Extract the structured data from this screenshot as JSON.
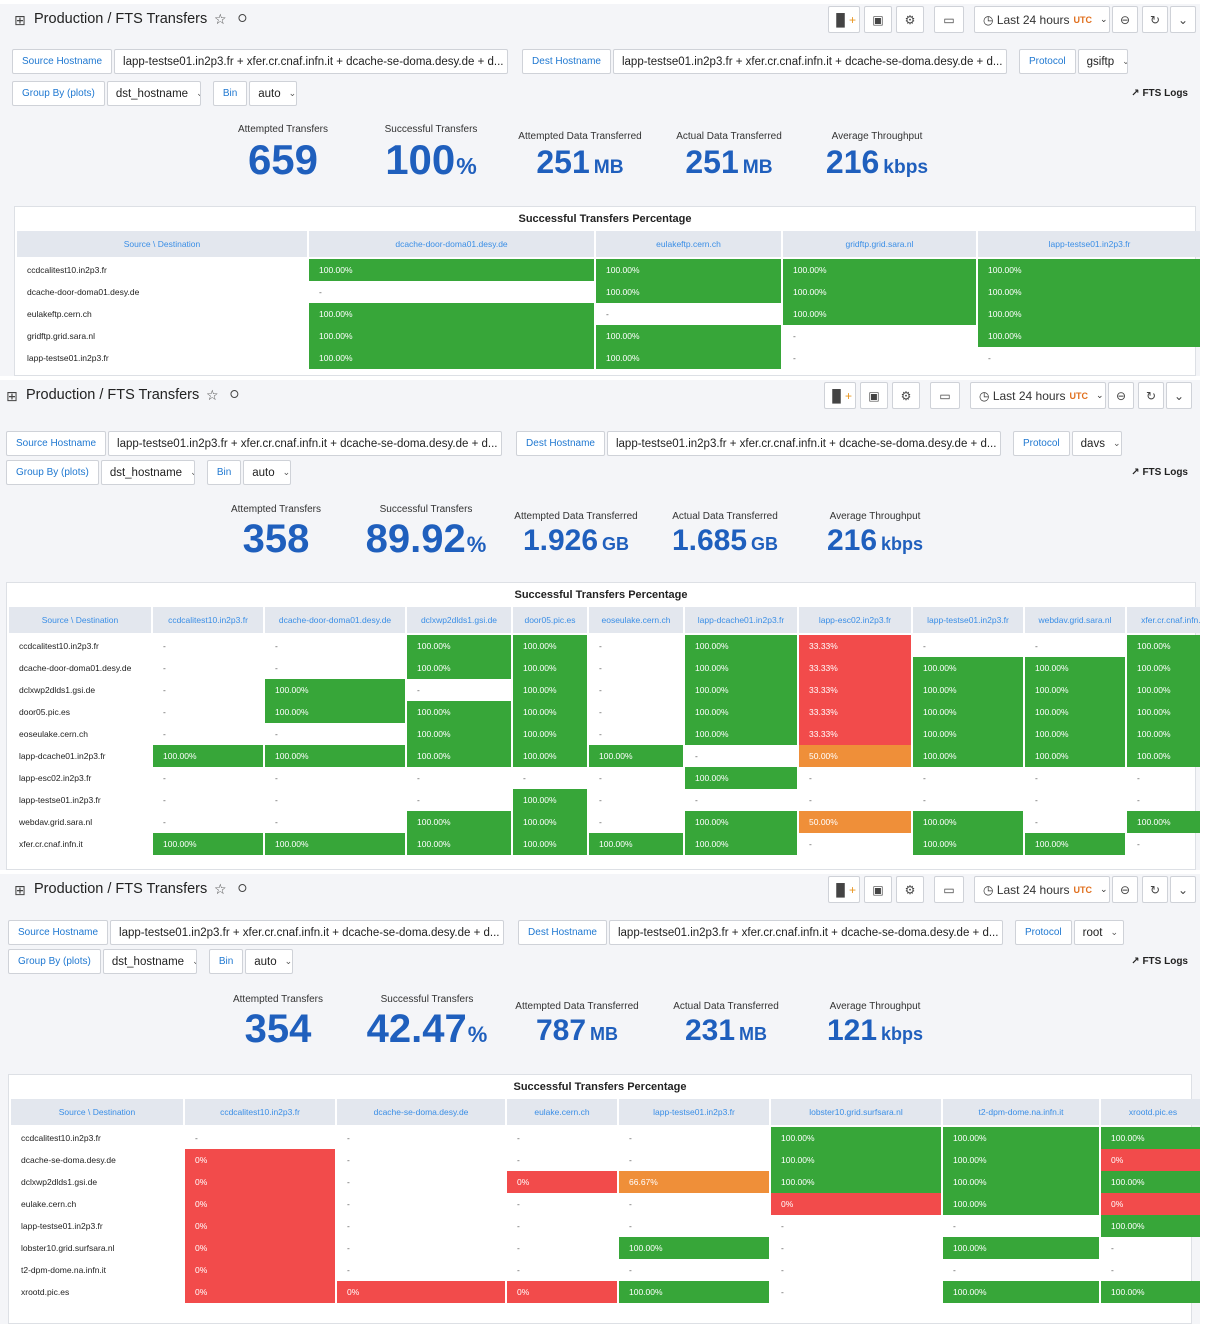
{
  "common": {
    "title": "Production / FTS Transfers",
    "time_range": "Last 24 hours",
    "tz": "UTC",
    "source_label": "Source Hostname",
    "dest_label": "Dest Hostname",
    "protocol_label": "Protocol",
    "groupby_label": "Group By (plots)",
    "groupby_value": "dst_hostname",
    "bin_label": "Bin",
    "bin_value": "auto",
    "hosts_value": "lapp-testse01.in2p3.fr + xfer.cr.cnaf.infn.it + dcache-se-doma.desy.de + d...",
    "fts_logs": "FTS Logs",
    "table_title": "Successful Transfers Percentage",
    "corner": "Source \\ Destination",
    "stat_titles": [
      "Attempted Transfers",
      "Successful Transfers",
      "Attempted Data Transferred",
      "Actual Data Transferred",
      "Average Throughput"
    ]
  },
  "panels": [
    {
      "protocol": "gsiftp",
      "stats": [
        {
          "value": "659",
          "unit": ""
        },
        {
          "value": "100",
          "unit": "%"
        },
        {
          "value": "251",
          "unit": "MB"
        },
        {
          "value": "251",
          "unit": "MB"
        },
        {
          "value": "216",
          "unit": "kbps"
        }
      ],
      "columns": [
        "dcache-door-doma01.desy.de",
        "eulakeftp.cern.ch",
        "gridftp.grid.sara.nl",
        "lapp-testse01.in2p3.fr"
      ],
      "rows": [
        {
          "src": "ccdcalitest10.in2p3.fr",
          "cells": [
            "100.00%",
            "100.00%",
            "100.00%",
            "100.00%"
          ]
        },
        {
          "src": "dcache-door-doma01.desy.de",
          "cells": [
            "-",
            "100.00%",
            "100.00%",
            "100.00%"
          ]
        },
        {
          "src": "eulakeftp.cern.ch",
          "cells": [
            "100.00%",
            "-",
            "100.00%",
            "100.00%"
          ]
        },
        {
          "src": "gridftp.grid.sara.nl",
          "cells": [
            "100.00%",
            "100.00%",
            "-",
            "100.00%"
          ]
        },
        {
          "src": "lapp-testse01.in2p3.fr",
          "cells": [
            "100.00%",
            "100.00%",
            "-",
            "-"
          ]
        }
      ]
    },
    {
      "protocol": "davs",
      "stats": [
        {
          "value": "358",
          "unit": ""
        },
        {
          "value": "89.92",
          "unit": "%"
        },
        {
          "value": "1.926",
          "unit": "GB"
        },
        {
          "value": "1.685",
          "unit": "GB"
        },
        {
          "value": "216",
          "unit": "kbps"
        }
      ],
      "columns": [
        "ccdcalitest10.in2p3.fr",
        "dcache-door-doma01.desy.de",
        "dclxwp2dlds1.gsi.de",
        "door05.pic.es",
        "eoseulake.cern.ch",
        "lapp-dcache01.in2p3.fr",
        "lapp-esc02.in2p3.fr",
        "lapp-testse01.in2p3.fr",
        "webdav.grid.sara.nl",
        "xfer.cr.cnaf.infn.it"
      ],
      "rows": [
        {
          "src": "ccdcalitest10.in2p3.fr",
          "cells": [
            "-",
            "-",
            "100.00%",
            "100.00%",
            "-",
            "100.00%",
            "33.33%",
            "-",
            "-",
            "100.00%"
          ]
        },
        {
          "src": "dcache-door-doma01.desy.de",
          "cells": [
            "-",
            "-",
            "100.00%",
            "100.00%",
            "-",
            "100.00%",
            "33.33%",
            "100.00%",
            "100.00%",
            "100.00%"
          ]
        },
        {
          "src": "dclxwp2dlds1.gsi.de",
          "cells": [
            "-",
            "100.00%",
            "-",
            "100.00%",
            "-",
            "100.00%",
            "33.33%",
            "100.00%",
            "100.00%",
            "100.00%"
          ]
        },
        {
          "src": "door05.pic.es",
          "cells": [
            "-",
            "100.00%",
            "100.00%",
            "100.00%",
            "-",
            "100.00%",
            "33.33%",
            "100.00%",
            "100.00%",
            "100.00%"
          ]
        },
        {
          "src": "eoseulake.cern.ch",
          "cells": [
            "-",
            "-",
            "100.00%",
            "100.00%",
            "-",
            "100.00%",
            "33.33%",
            "100.00%",
            "100.00%",
            "100.00%"
          ]
        },
        {
          "src": "lapp-dcache01.in2p3.fr",
          "cells": [
            "100.00%",
            "100.00%",
            "100.00%",
            "100.00%",
            "100.00%",
            "-",
            "50.00%",
            "100.00%",
            "100.00%",
            "100.00%"
          ]
        },
        {
          "src": "lapp-esc02.in2p3.fr",
          "cells": [
            "-",
            "-",
            "-",
            "-",
            "-",
            "100.00%",
            "-",
            "-",
            "-",
            "-"
          ]
        },
        {
          "src": "lapp-testse01.in2p3.fr",
          "cells": [
            "-",
            "-",
            "-",
            "100.00%",
            "-",
            "-",
            "-",
            "-",
            "-",
            "-"
          ]
        },
        {
          "src": "webdav.grid.sara.nl",
          "cells": [
            "-",
            "-",
            "100.00%",
            "100.00%",
            "-",
            "100.00%",
            "50.00%",
            "100.00%",
            "-",
            "100.00%"
          ]
        },
        {
          "src": "xfer.cr.cnaf.infn.it",
          "cells": [
            "100.00%",
            "100.00%",
            "100.00%",
            "100.00%",
            "100.00%",
            "100.00%",
            "-",
            "100.00%",
            "100.00%",
            "-"
          ]
        }
      ]
    },
    {
      "protocol": "root",
      "stats": [
        {
          "value": "354",
          "unit": ""
        },
        {
          "value": "42.47",
          "unit": "%"
        },
        {
          "value": "787",
          "unit": "MB"
        },
        {
          "value": "231",
          "unit": "MB"
        },
        {
          "value": "121",
          "unit": "kbps"
        }
      ],
      "columns": [
        "ccdcalitest10.in2p3.fr",
        "dcache-se-doma.desy.de",
        "eulake.cern.ch",
        "lapp-testse01.in2p3.fr",
        "lobster10.grid.surfsara.nl",
        "t2-dpm-dome.na.infn.it",
        "xrootd.pic.es"
      ],
      "rows": [
        {
          "src": "ccdcalitest10.in2p3.fr",
          "cells": [
            "-",
            "-",
            "-",
            "-",
            "100.00%",
            "100.00%",
            "100.00%"
          ]
        },
        {
          "src": "dcache-se-doma.desy.de",
          "cells": [
            "0%",
            "-",
            "-",
            "-",
            "100.00%",
            "100.00%",
            "0%"
          ]
        },
        {
          "src": "dclxwp2dlds1.gsi.de",
          "cells": [
            "0%",
            "-",
            "0%",
            "66.67%",
            "100.00%",
            "100.00%",
            "100.00%"
          ]
        },
        {
          "src": "eulake.cern.ch",
          "cells": [
            "0%",
            "-",
            "-",
            "-",
            "0%",
            "100.00%",
            "0%"
          ]
        },
        {
          "src": "lapp-testse01.in2p3.fr",
          "cells": [
            "0%",
            "-",
            "-",
            "-",
            "-",
            "-",
            "100.00%"
          ]
        },
        {
          "src": "lobster10.grid.surfsara.nl",
          "cells": [
            "0%",
            "-",
            "-",
            "100.00%",
            "-",
            "100.00%",
            "-"
          ]
        },
        {
          "src": "t2-dpm-dome.na.infn.it",
          "cells": [
            "0%",
            "-",
            "-",
            "-",
            "-",
            "-",
            "-"
          ]
        },
        {
          "src": "xrootd.pic.es",
          "cells": [
            "0%",
            "0%",
            "0%",
            "100.00%",
            "-",
            "100.00%",
            "100.00%"
          ]
        }
      ]
    }
  ],
  "colors": {
    "green": "#37a639",
    "red": "#f24b4b",
    "orange": "#ef8f39",
    "accent": "#1f78d1",
    "stat_blue": "#1f5fbd"
  }
}
